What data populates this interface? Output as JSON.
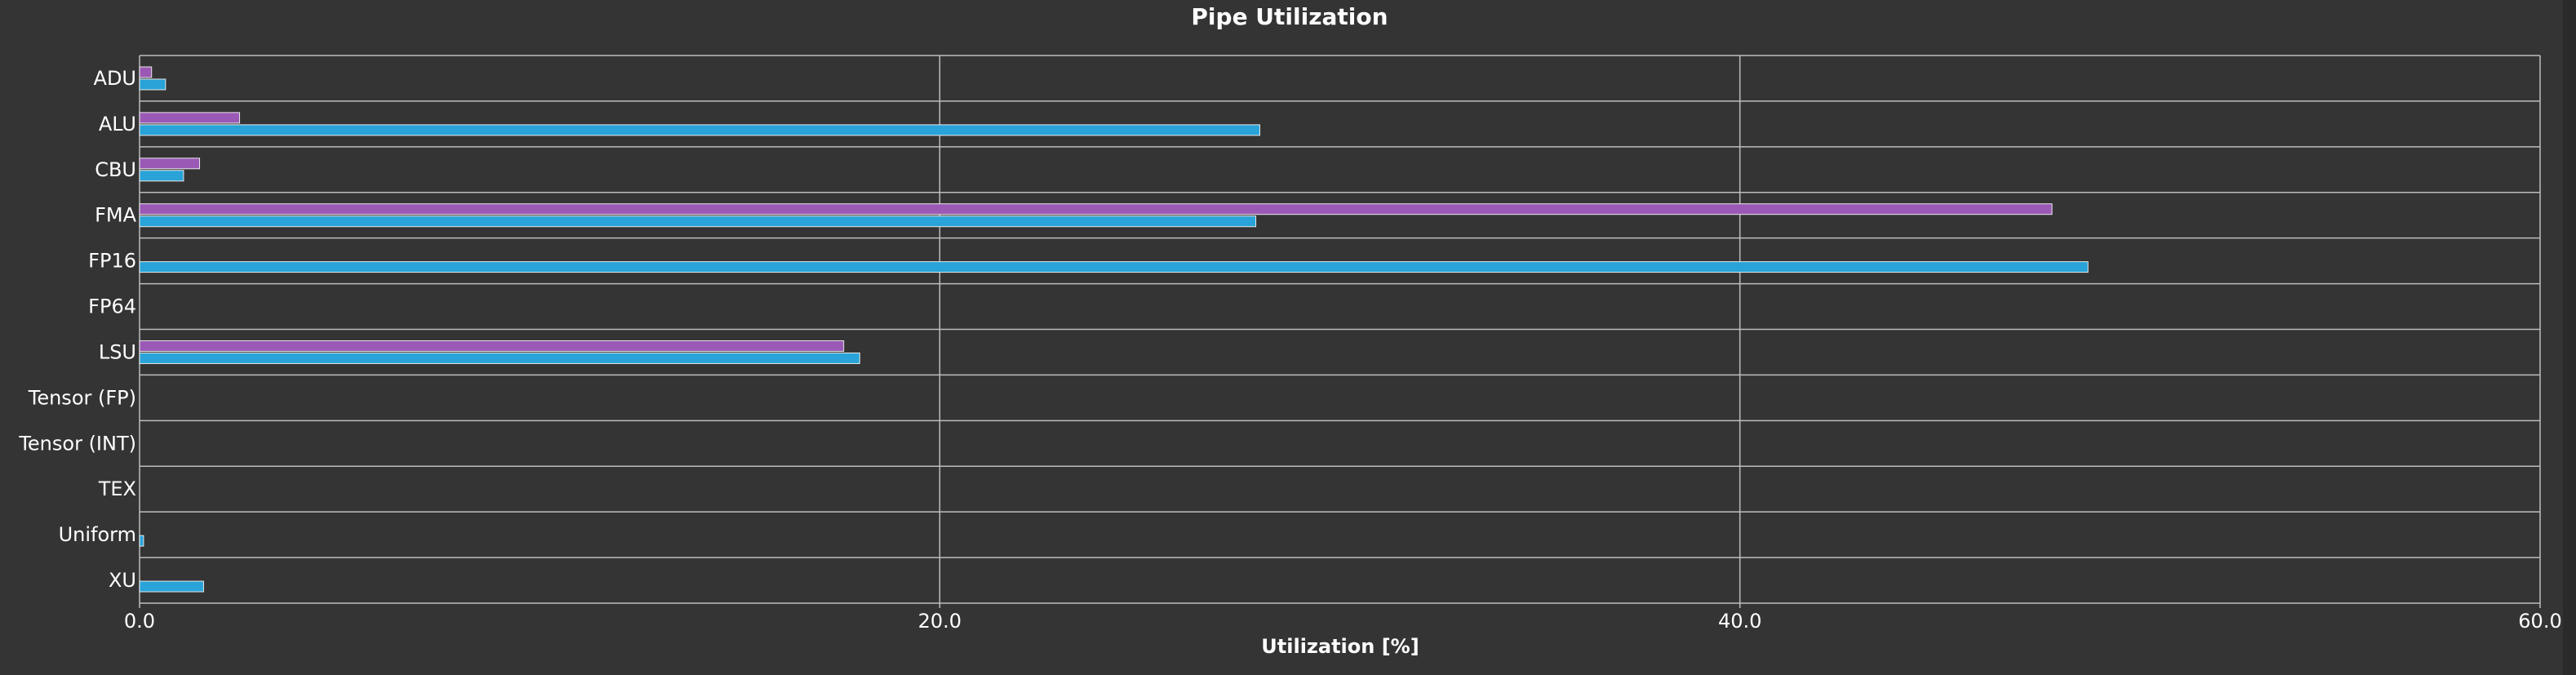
{
  "chart_data": {
    "type": "bar",
    "orientation": "horizontal",
    "title": "Pipe Utilization",
    "xlabel": "Utilization [%]",
    "ylabel": "",
    "xlim": [
      0,
      60
    ],
    "xticks": [
      "0.0",
      "20.0",
      "40.0",
      "60.0"
    ],
    "grid": true,
    "categories": [
      "ADU",
      "ALU",
      "CBU",
      "FMA",
      "FP16",
      "FP64",
      "LSU",
      "Tensor (FP)",
      "Tensor (INT)",
      "TEX",
      "Uniform",
      "XU"
    ],
    "series": [
      {
        "values": [
          0.3,
          2.5,
          1.5,
          47.8,
          0,
          0,
          17.6,
          0,
          0,
          0,
          0,
          0
        ]
      },
      {
        "values": [
          0.65,
          28.0,
          1.1,
          27.9,
          48.7,
          0,
          18.0,
          0,
          0,
          0,
          0.1,
          1.6
        ]
      }
    ]
  },
  "colors": {
    "background": "#343434",
    "grid": "#bdbdbd",
    "text": "#ffffff",
    "series": [
      "#9b59b6",
      "#29a3d8"
    ],
    "bar_edge": "#e8e8e8"
  }
}
